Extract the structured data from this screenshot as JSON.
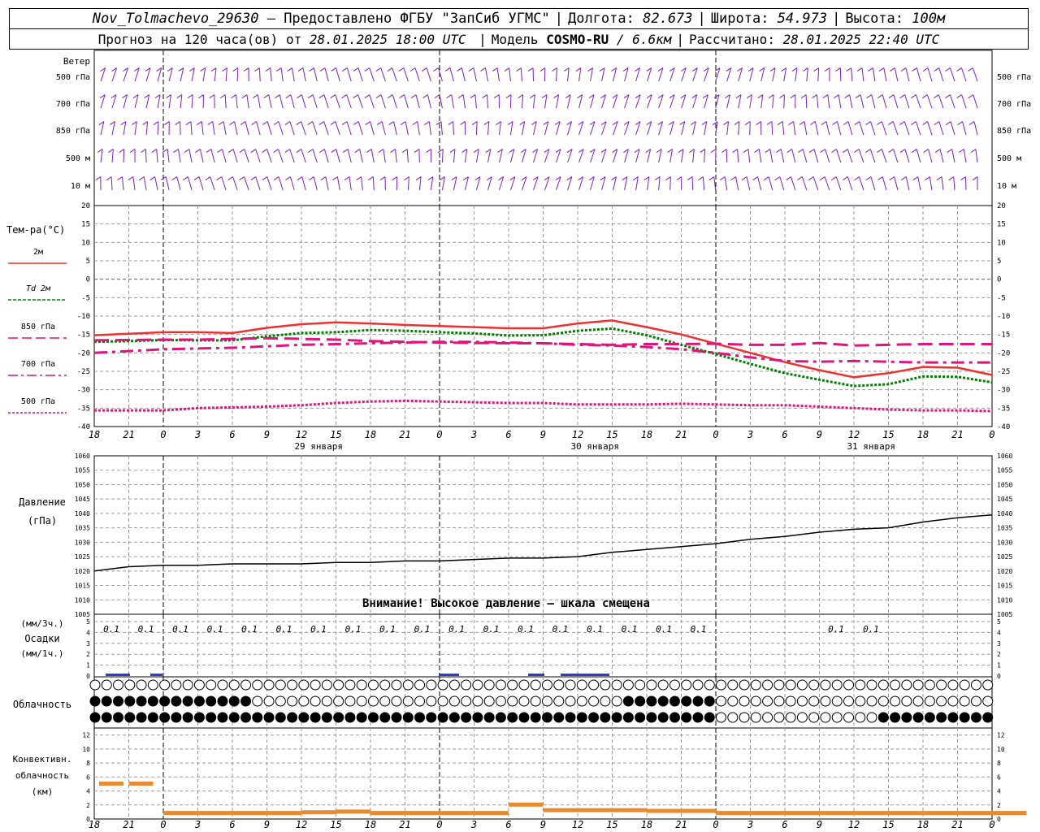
{
  "header": {
    "station": "Nov_Tolmachevo_29630",
    "provider": "– Предоставлено ФГБУ \"ЗапСиб УГМС\"",
    "lon_label": "Долгота:",
    "lon": "82.673",
    "lat_label": "Широта:",
    "lat": "54.973",
    "alt_label": "Высота:",
    "alt": "100м",
    "forecast_prefix": "Прогноз на 120 часа(ов) от",
    "forecast_from": "28.01.2025 18:00 UTC",
    "model_label": "Модель",
    "model": "COSMO-RU",
    "resolution": "/ 6.6км",
    "calc_label": "Рассчитано:",
    "calc_time": "28.01.2025 22:40 UTC"
  },
  "wind_panel": {
    "title": "Ветер",
    "levels": [
      "500 гПа",
      "700 гПа",
      "850 гПа",
      "500 м",
      "10   м"
    ],
    "color": "#7a1fc8"
  },
  "time_axis": {
    "hour_labels": [
      "18",
      "21",
      "0",
      "3",
      "6",
      "9",
      "12",
      "15",
      "18",
      "21",
      "0",
      "3",
      "6",
      "9",
      "12",
      "15",
      "18",
      "21",
      "0",
      "3",
      "6",
      "9",
      "12",
      "15",
      "18",
      "21",
      "0"
    ],
    "day_labels": [
      "29 января",
      "30 января",
      "31 января"
    ]
  },
  "temp_panel": {
    "title": "Тем-ра(°C)",
    "yticks": [
      "20",
      "15",
      "10",
      "5",
      "0",
      "-5",
      "-10",
      "-15",
      "-20",
      "-25",
      "-30",
      "-35",
      "-40"
    ],
    "legend": [
      {
        "label": "2м",
        "color": "#ee3030"
      },
      {
        "label": "Td  2м",
        "color": "#008000"
      },
      {
        "label": "850 гПа",
        "color": "#e0147a"
      },
      {
        "label": "700 гПа",
        "color": "#e0147a"
      },
      {
        "label": "500 гПа",
        "color": "#e0147a"
      }
    ]
  },
  "pressure_panel": {
    "title": "Давление",
    "unit": "(гПа)",
    "yticks": [
      "1060",
      "1055",
      "1050",
      "1045",
      "1040",
      "1035",
      "1030",
      "1025",
      "1020",
      "1015",
      "1010",
      "1005"
    ],
    "warning": "Внимание! Высокое давление – шкала смещена"
  },
  "precip_panel": {
    "title_top": "(мм/3ч.)",
    "title_mid": "Осадки",
    "title_bot": "(мм/1ч.)",
    "yticks": [
      "5",
      "4",
      "3",
      "2",
      "1",
      "0"
    ],
    "labels": [
      "0.1",
      "0.1",
      "0.1",
      "0.1",
      "0.1",
      "0.1",
      "0.1",
      "0.1",
      "0.1",
      "0.1",
      "0.1",
      "0.1",
      "0.1",
      "0.1",
      "0.1",
      "0.1",
      "0.1",
      "0.1",
      "0.1",
      "0.1"
    ]
  },
  "cloud_panel": {
    "title": "Облачность",
    "rows": {
      "upper": "ooooooooooooooooooooooooooooooooooooooooooooooooooooooooooooooooooooooooooooooooooooooooooooooooooooooooo",
      "middle": "",
      "lower": ""
    }
  },
  "conv_panel": {
    "title1": "Конвективн.",
    "title2": "облачность",
    "unit": "(км)",
    "yticks": [
      "12",
      "10",
      "8",
      "6",
      "4",
      "2",
      "0"
    ]
  },
  "chart_data": [
    {
      "type": "line",
      "title": "Тем-ра(°C)",
      "x_hours": [
        0,
        3,
        6,
        9,
        12,
        15,
        18,
        21,
        24,
        27,
        30,
        33,
        36,
        39,
        42,
        45,
        48,
        51,
        54,
        57,
        60,
        63,
        66,
        69,
        72,
        75,
        78
      ],
      "ylim": [
        -40,
        20
      ],
      "series": [
        {
          "name": "2м",
          "values": [
            -15.2,
            -14.8,
            -14.4,
            -14.4,
            -14.6,
            -13.2,
            -12.2,
            -11.7,
            -12.0,
            -12.4,
            -12.7,
            -13.0,
            -13.3,
            -13.3,
            -12.0,
            -11.2,
            -13.0,
            -15.0,
            -17.5,
            -20.0,
            -22.5,
            -24.7,
            -26.6,
            -25.5,
            -23.8,
            -24.0,
            -26.0
          ]
        },
        {
          "name": "Td  2м",
          "values": [
            -17.0,
            -16.8,
            -16.5,
            -16.6,
            -16.6,
            -15.5,
            -14.6,
            -14.4,
            -13.8,
            -14.0,
            -14.4,
            -14.7,
            -15.3,
            -15.2,
            -14.0,
            -13.4,
            -15.2,
            -17.8,
            -20.3,
            -23.0,
            -25.5,
            -27.3,
            -29.0,
            -28.5,
            -26.4,
            -26.5,
            -28.0
          ]
        },
        {
          "name": "850 гПа",
          "values": [
            -16.6,
            -16.5,
            -16.4,
            -16.4,
            -16.2,
            -16.0,
            -16.2,
            -16.4,
            -16.8,
            -17.0,
            -17.2,
            -17.3,
            -17.4,
            -17.4,
            -17.6,
            -17.8,
            -17.6,
            -17.6,
            -17.5,
            -17.8,
            -17.8,
            -17.3,
            -18.0,
            -17.8,
            -17.6,
            -17.6,
            -17.6
          ]
        },
        {
          "name": "700 гПа",
          "values": [
            -20.0,
            -19.5,
            -19.0,
            -18.8,
            -18.6,
            -18.2,
            -17.8,
            -17.6,
            -17.4,
            -17.2,
            -17.0,
            -17.0,
            -17.2,
            -17.4,
            -17.8,
            -18.0,
            -18.4,
            -19.0,
            -20.0,
            -21.2,
            -22.2,
            -22.4,
            -22.2,
            -22.4,
            -22.6,
            -22.6,
            -22.6
          ]
        },
        {
          "name": "500 гПа",
          "values": [
            -35.6,
            -35.6,
            -35.6,
            -35.0,
            -34.8,
            -34.6,
            -34.2,
            -33.6,
            -33.2,
            -33.0,
            -33.2,
            -33.4,
            -33.6,
            -33.6,
            -34.0,
            -34.0,
            -34.0,
            -33.8,
            -34.0,
            -34.2,
            -34.2,
            -34.6,
            -35.0,
            -35.4,
            -35.6,
            -35.6,
            -35.8
          ]
        }
      ]
    },
    {
      "type": "line",
      "title": "Давление",
      "x_hours": [
        0,
        3,
        6,
        9,
        12,
        15,
        18,
        21,
        24,
        27,
        30,
        33,
        36,
        39,
        42,
        45,
        48,
        51,
        54,
        57,
        60,
        63,
        66,
        69,
        72,
        75,
        78
      ],
      "ylim": [
        1005,
        1060
      ],
      "series": [
        {
          "name": "Давление",
          "values": [
            1020,
            1021.5,
            1022,
            1022,
            1022.5,
            1022.5,
            1022.5,
            1023,
            1023,
            1023.5,
            1023.5,
            1024,
            1024.5,
            1024.5,
            1025,
            1026.5,
            1027.5,
            1028.5,
            1029.5,
            1031,
            1032,
            1033.5,
            1034.5,
            1035,
            1037,
            1038.5,
            1039.5
          ]
        }
      ]
    },
    {
      "type": "bar",
      "title": "Конвективн. облачность",
      "ylim": [
        0,
        13
      ],
      "series": [
        {
          "name": "(км)",
          "values": [
            5,
            5,
            0.8,
            0.8,
            0.8,
            0.8,
            0.9,
            1.0,
            0.8,
            0.8,
            0.8,
            0.8,
            2.0,
            1.2,
            1.2,
            1.2,
            1.1,
            1.1,
            0.8,
            0.8,
            0.8,
            0.8,
            0.8,
            0.8,
            0.8,
            0.8,
            0.8
          ]
        }
      ]
    }
  ]
}
